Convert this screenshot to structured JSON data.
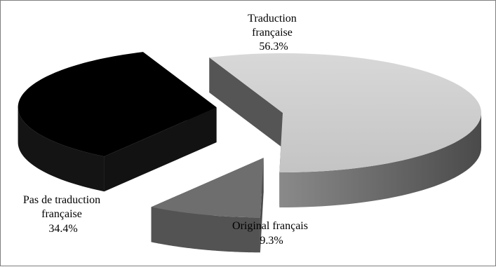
{
  "chart_data": {
    "type": "pie",
    "style": "3d-exploded",
    "title": "",
    "legend": "none",
    "slices": [
      {
        "label_lines": [
          "Traduction",
          "française"
        ],
        "value": 56.3,
        "value_label": "56.3%",
        "color": "#d0d0d0"
      },
      {
        "label_lines": [
          "Original français"
        ],
        "value": 9.3,
        "value_label": "9.3%",
        "color": "#6e6e6e"
      },
      {
        "label_lines": [
          "Pas de traduction",
          "française"
        ],
        "value": 34.4,
        "value_label": "34.4%",
        "color": "#000000"
      }
    ]
  }
}
